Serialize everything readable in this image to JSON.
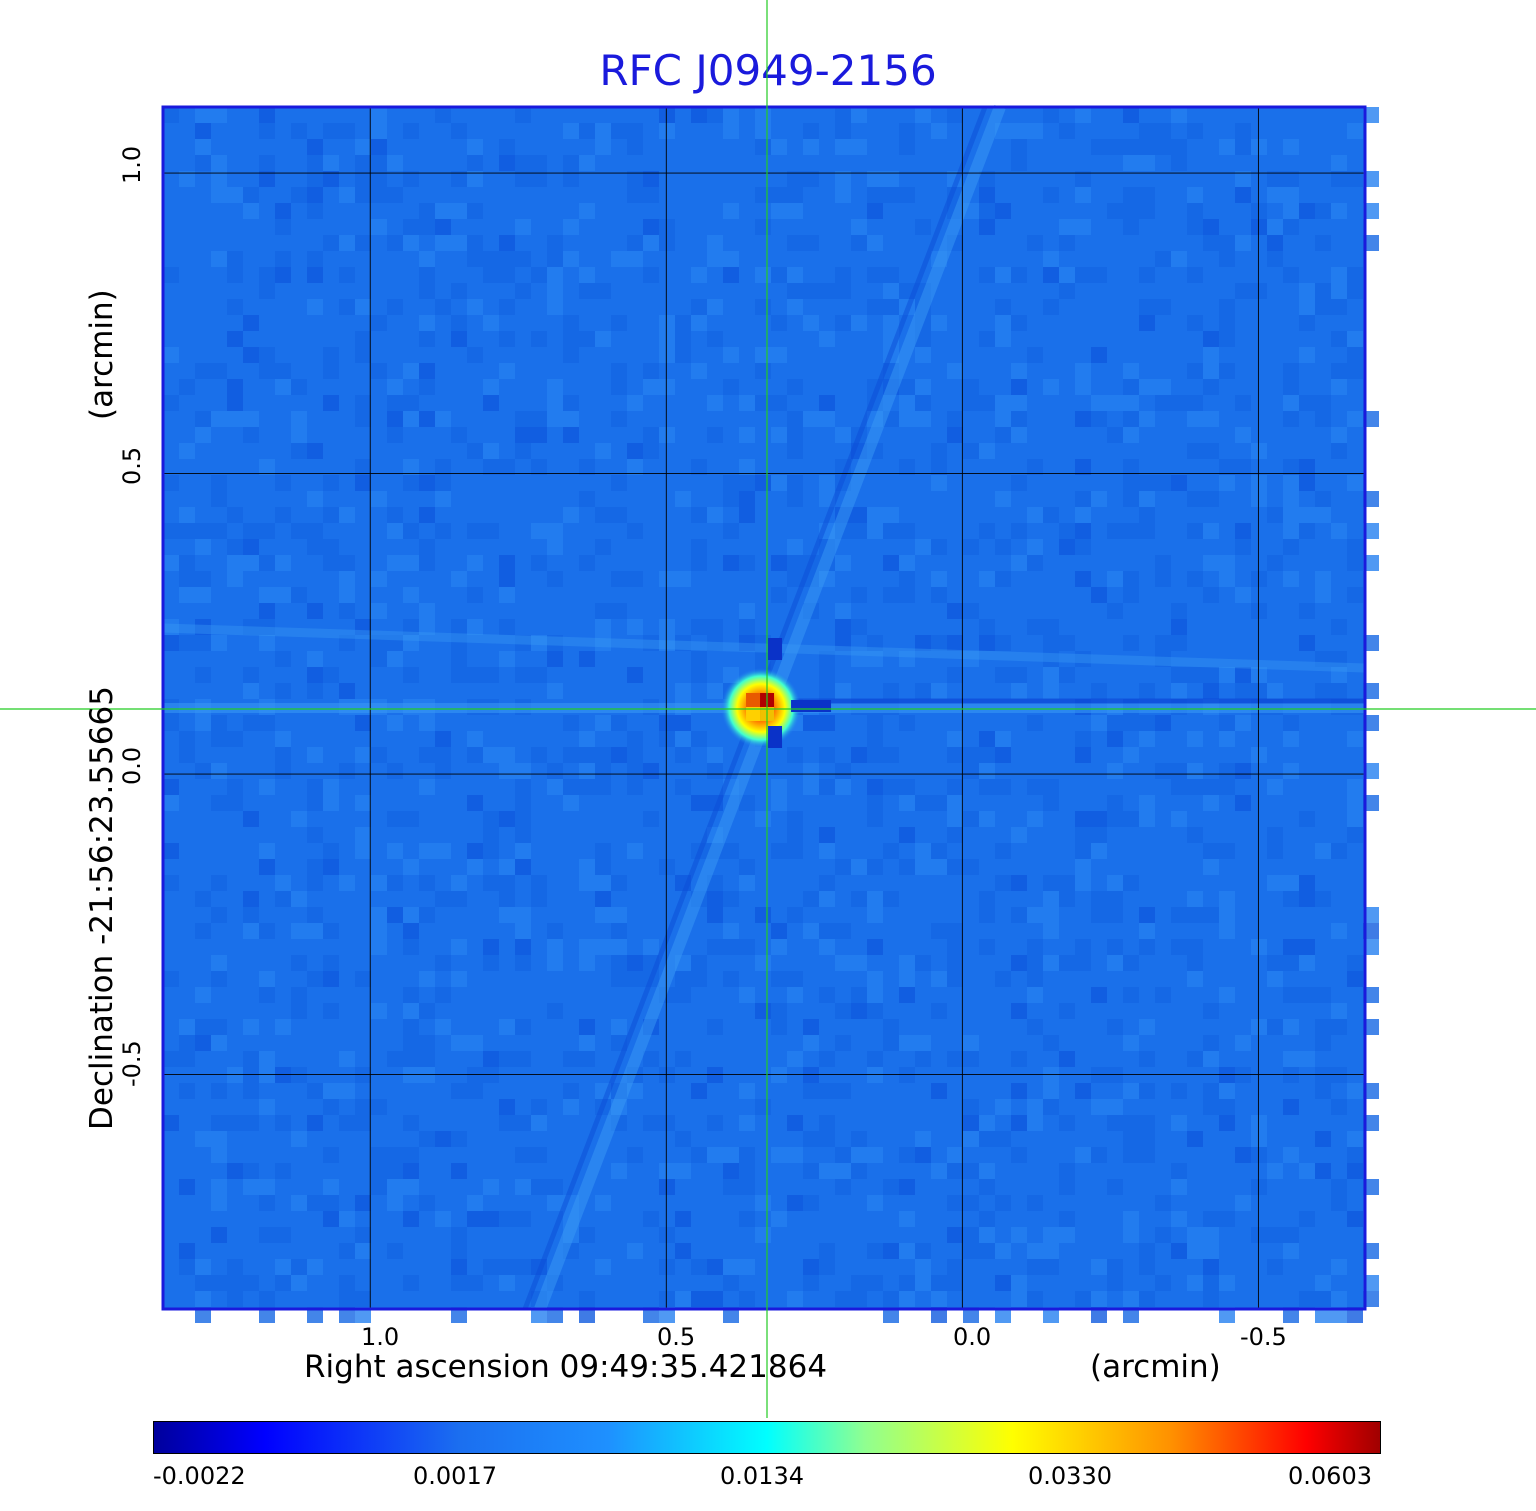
{
  "chart_data": {
    "type": "heatmap",
    "title": "RFC J0949-2156",
    "xlabel": "Right ascension  09:49:35.421864",
    "xunit": "(arcmin)",
    "ylabel": "Declination  -21:56:23.55665",
    "yunit": "(arcmin)",
    "x_ticks": [
      "1.0",
      "0.5",
      "0.0",
      "-0.5"
    ],
    "y_ticks": [
      "1.0",
      "0.5",
      "0.0",
      "-0.5"
    ],
    "xlim": [
      1.35,
      -0.68
    ],
    "ylim": [
      -0.89,
      1.11
    ],
    "grid": true,
    "colormap": "jet",
    "colorbar_labels": [
      "-0.0022",
      "0.0017",
      "0.0134",
      "0.0330",
      "0.0603"
    ],
    "source_position": {
      "x": 0.34,
      "y": 0.11
    },
    "crosshair_position": {
      "x": 0.335,
      "y": 0.108
    },
    "peak_value": 0.0603,
    "background_value": 0.0006
  }
}
